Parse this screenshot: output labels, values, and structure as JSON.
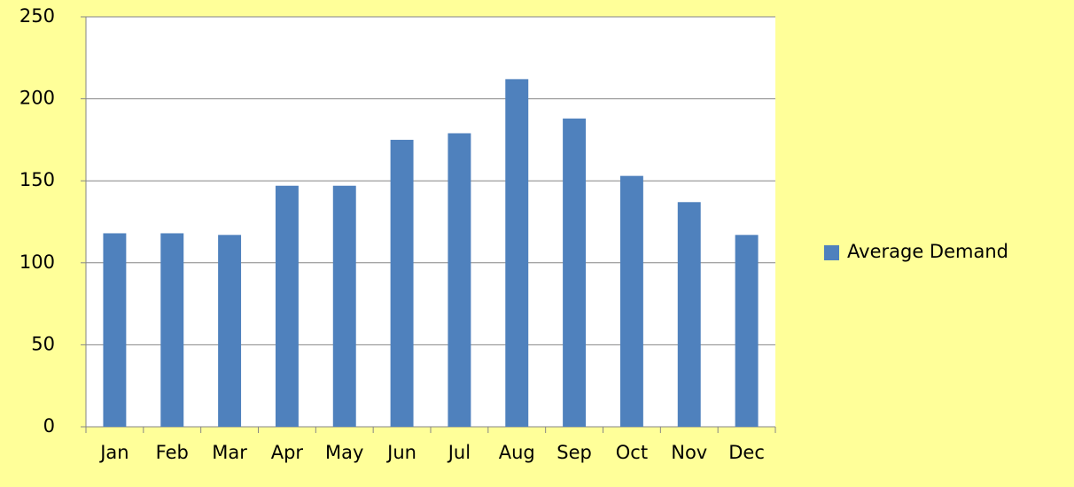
{
  "chart_data": {
    "type": "bar",
    "categories": [
      "Jan",
      "Feb",
      "Mar",
      "Apr",
      "May",
      "Jun",
      "Jul",
      "Aug",
      "Sep",
      "Oct",
      "Nov",
      "Dec"
    ],
    "series": [
      {
        "name": "Average Demand",
        "color": "#4f81bd",
        "values": [
          118,
          118,
          117,
          147,
          147,
          175,
          179,
          212,
          188,
          153,
          137,
          117
        ]
      }
    ],
    "ylim": [
      0,
      250
    ],
    "yticks": [
      0,
      50,
      100,
      150,
      200,
      250
    ],
    "grid": true,
    "legend": "right"
  }
}
